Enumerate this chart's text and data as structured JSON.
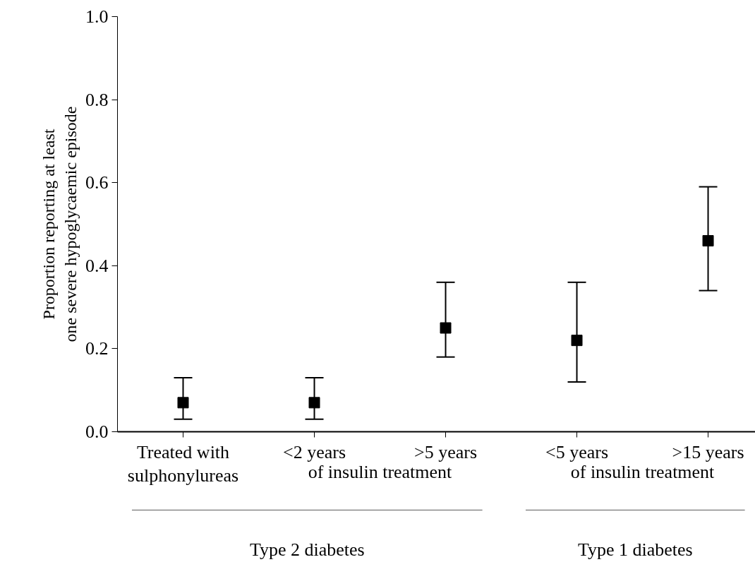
{
  "chart_data": {
    "type": "scatter",
    "ylabel": "Proportion reporting at least\none severe hypoglycaemic episode",
    "categories": [
      "Treated with\nsulphonylureas",
      "<2 years",
      ">5 years",
      "<5 years",
      ">15 years"
    ],
    "series": [
      {
        "color": "#000000",
        "values": [
          0.07,
          0.07,
          0.25,
          0.22,
          0.46
        ],
        "errors": [
          [
            0.03,
            0.13
          ],
          [
            0.03,
            0.13
          ],
          [
            0.18,
            0.36
          ],
          [
            0.12,
            0.36
          ],
          [
            0.34,
            0.59
          ]
        ]
      }
    ],
    "ylim": [
      0,
      1
    ],
    "yticks": [
      {
        "value": 0,
        "label": "0.0"
      },
      {
        "value": 0.2,
        "label": "0.2"
      },
      {
        "value": 0.4,
        "label": "0.4"
      },
      {
        "value": 0.6,
        "label": "0.6"
      },
      {
        "value": 0.8,
        "label": "0.8"
      },
      {
        "value": 1,
        "label": "1.0"
      }
    ],
    "annotations": [
      "of insulin treatment",
      "of insulin treatment",
      "Type 2 diabetes",
      "Type 1 diabetes"
    ],
    "marker": "square",
    "grid": false
  }
}
